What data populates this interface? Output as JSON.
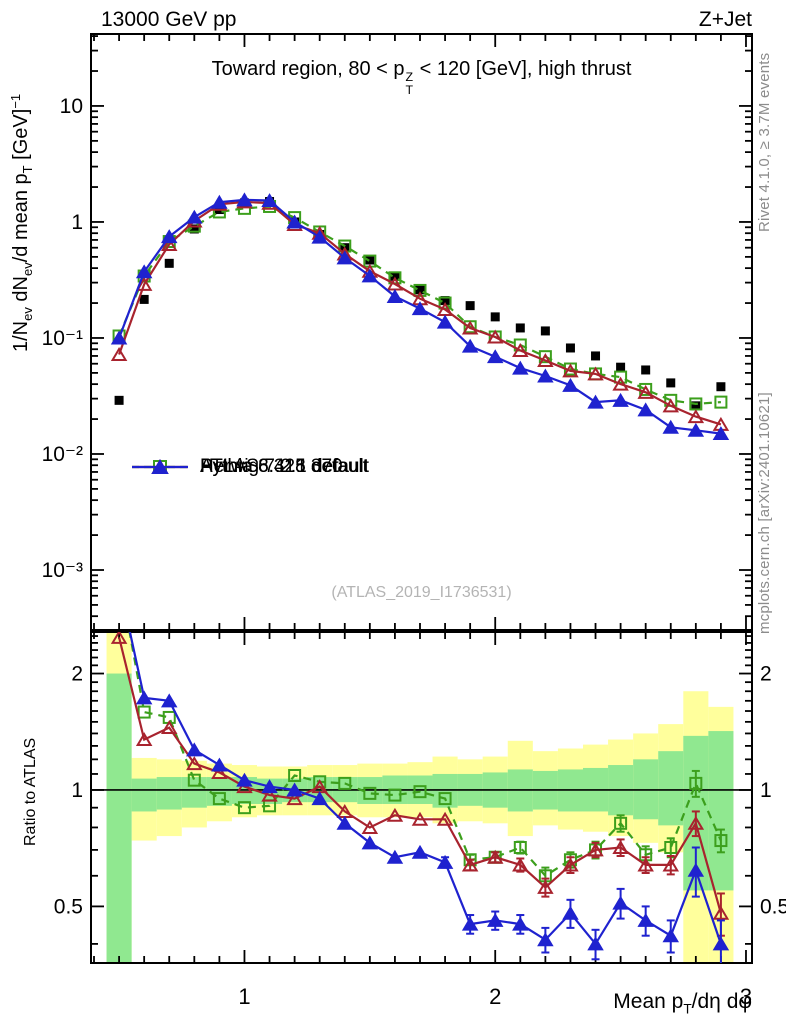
{
  "header": {
    "left": "13000 GeV pp",
    "right": "Z+Jet"
  },
  "panel_title": {
    "pre": "Toward region, 80 < p",
    "sup": "Z",
    "sub": "T",
    "post": " < 120 [GeV], high thrust"
  },
  "watermark": "(ATLAS_2019_I1736531)",
  "side_captions": {
    "top_right": "Rivet 4.1.0, ≥ 3.7M events",
    "bottom_right": "mcplots.cern.ch [arXiv:2401.10621]"
  },
  "axes": {
    "x": {
      "scale": "linear",
      "min": 0.388,
      "max": 3.024,
      "major_ticks": [
        1,
        2,
        3
      ],
      "major_labels": [
        "1",
        "2",
        "3"
      ],
      "minor_start": 0.4,
      "minor_step": 0.1,
      "title": {
        "pre": "Mean p",
        "sub": "T",
        "post": "/dη dφ"
      }
    },
    "y_main": {
      "scale": "log",
      "min": 0.000304,
      "max": 41.7,
      "ticks": [
        {
          "v": 10,
          "label": "10"
        },
        {
          "v": 1,
          "label": "1"
        },
        {
          "v": 0.1,
          "label": "10⁻¹"
        },
        {
          "v": 0.01,
          "label": "10⁻²"
        },
        {
          "v": 0.001,
          "label": "10⁻³"
        }
      ],
      "title_segments": [
        {
          "t": "1/N"
        },
        {
          "t": "ev",
          "sub": true
        },
        {
          "t": " dN"
        },
        {
          "t": "ev",
          "sub": true
        },
        {
          "t": "/d mean p"
        },
        {
          "t": "T",
          "sub": true
        },
        {
          "t": " [GeV]"
        },
        {
          "t": "−1",
          "sup": true
        }
      ]
    },
    "y_ratio": {
      "scale": "log",
      "min": 0.357,
      "max": 2.561,
      "label": "Ratio to ATLAS",
      "ticks": [
        {
          "v": 2,
          "label": "2"
        },
        {
          "v": 1,
          "label": "1"
        },
        {
          "v": 0.5,
          "label": "0.5"
        }
      ]
    }
  },
  "chart_data": {
    "type": "line",
    "title": "Toward region, 80 < pT(Z) < 120 [GeV], high thrust",
    "xlabel": "Mean pT/deta dphi",
    "ylabel": "1/N_ev dN_ev/d mean pT [GeV]^-1",
    "ratio_ylabel": "Ratio to ATLAS",
    "x": [
      0.5,
      0.6,
      0.7,
      0.8,
      0.9,
      1.0,
      1.1,
      1.2,
      1.3,
      1.4,
      1.5,
      1.6,
      1.7,
      1.8,
      1.9,
      2.0,
      2.1,
      2.2,
      2.3,
      2.4,
      2.5,
      2.6,
      2.7,
      2.8,
      2.9
    ],
    "series": [
      {
        "name": "atlas",
        "legend": "ATLAS",
        "color": "#000000",
        "marker": "square-filled",
        "line": "none",
        "values": [
          0.029,
          0.215,
          0.44,
          0.87,
          1.28,
          1.46,
          1.5,
          1.0,
          0.78,
          0.6,
          0.47,
          0.34,
          0.26,
          0.21,
          0.19,
          0.152,
          0.122,
          0.115,
          0.082,
          0.07,
          0.056,
          0.053,
          0.041,
          0.026,
          0.038
        ],
        "ratio": null
      },
      {
        "name": "herwig",
        "legend": "Herwig 7.2.1 default",
        "color": "#3c9f1c",
        "marker": "square-open",
        "line": "dashed",
        "values": [
          0.104,
          0.342,
          0.678,
          0.92,
          1.22,
          1.31,
          1.36,
          1.09,
          0.82,
          0.62,
          0.46,
          0.33,
          0.257,
          0.2,
          0.125,
          0.102,
          0.087,
          0.069,
          0.054,
          0.049,
          0.046,
          0.036,
          0.029,
          0.027,
          0.028
        ],
        "ratio": [
          3.6,
          1.59,
          1.54,
          1.06,
          0.95,
          0.9,
          0.91,
          1.09,
          1.05,
          1.04,
          0.98,
          0.97,
          0.99,
          0.95,
          0.66,
          0.67,
          0.71,
          0.6,
          0.66,
          0.7,
          0.82,
          0.68,
          0.71,
          1.04,
          0.74
        ],
        "ratio_err": [
          0,
          0,
          0,
          0,
          0,
          0,
          0,
          0,
          0,
          0,
          0,
          0,
          0,
          0,
          0.02,
          0.02,
          0.025,
          0.03,
          0.03,
          0.035,
          0.04,
          0.035,
          0.04,
          0.08,
          0.05
        ]
      },
      {
        "name": "pythia6",
        "legend": "Pythia 6.428 370",
        "color": "#a8232e",
        "marker": "triangle-open",
        "line": "solid",
        "values": [
          0.072,
          0.29,
          0.64,
          1.02,
          1.42,
          1.49,
          1.45,
          0.95,
          0.8,
          0.53,
          0.376,
          0.292,
          0.218,
          0.176,
          0.122,
          0.102,
          0.078,
          0.064,
          0.052,
          0.049,
          0.04,
          0.034,
          0.026,
          0.021,
          0.018
        ],
        "ratio": [
          2.48,
          1.35,
          1.45,
          1.17,
          1.11,
          1.02,
          0.97,
          0.95,
          1.02,
          0.88,
          0.8,
          0.86,
          0.84,
          0.84,
          0.64,
          0.67,
          0.64,
          0.56,
          0.64,
          0.7,
          0.71,
          0.64,
          0.64,
          0.82,
          0.48
        ],
        "ratio_err": [
          0,
          0,
          0,
          0,
          0,
          0,
          0,
          0,
          0,
          0,
          0,
          0,
          0,
          0,
          0.02,
          0.02,
          0.025,
          0.03,
          0.03,
          0.03,
          0.035,
          0.03,
          0.035,
          0.06,
          0.06
        ]
      },
      {
        "name": "pythia8",
        "legend": "Pythia 8.315 default",
        "color": "#1f22cf",
        "marker": "triangle-filled",
        "line": "solid",
        "values": [
          0.1,
          0.372,
          0.748,
          1.1,
          1.48,
          1.55,
          1.53,
          1.0,
          0.74,
          0.49,
          0.343,
          0.228,
          0.179,
          0.137,
          0.085,
          0.069,
          0.055,
          0.047,
          0.039,
          0.028,
          0.029,
          0.024,
          0.017,
          0.016,
          0.015
        ],
        "ratio": [
          3.45,
          1.73,
          1.7,
          1.27,
          1.16,
          1.06,
          1.02,
          1.0,
          0.95,
          0.82,
          0.73,
          0.67,
          0.69,
          0.65,
          0.45,
          0.46,
          0.45,
          0.41,
          0.48,
          0.4,
          0.51,
          0.46,
          0.42,
          0.62,
          0.4
        ],
        "ratio_err": [
          0,
          0,
          0,
          0,
          0,
          0,
          0,
          0,
          0,
          0,
          0,
          0,
          0,
          0.02,
          0.025,
          0.025,
          0.025,
          0.03,
          0.04,
          0.035,
          0.045,
          0.04,
          0.04,
          0.09,
          0.06
        ]
      }
    ],
    "ratio_reference": 1,
    "bands": {
      "outer_color": "#ffff9c",
      "inner_color": "#90e890",
      "bin_halfwidth": 0.05,
      "bins": [
        {
          "x": 0.5,
          "outer": [
            0.35,
            2.56
          ],
          "inner": [
            0.35,
            2.0
          ]
        },
        {
          "x": 0.6,
          "outer": [
            0.74,
            1.21
          ],
          "inner": [
            0.88,
            1.07
          ]
        },
        {
          "x": 0.7,
          "outer": [
            0.76,
            1.2
          ],
          "inner": [
            0.89,
            1.08
          ]
        },
        {
          "x": 0.8,
          "outer": [
            0.8,
            1.19
          ],
          "inner": [
            0.9,
            1.08
          ]
        },
        {
          "x": 0.9,
          "outer": [
            0.83,
            1.17
          ],
          "inner": [
            0.91,
            1.08
          ]
        },
        {
          "x": 1.0,
          "outer": [
            0.85,
            1.16
          ],
          "inner": [
            0.92,
            1.08
          ]
        },
        {
          "x": 1.1,
          "outer": [
            0.86,
            1.15
          ],
          "inner": [
            0.92,
            1.07
          ]
        },
        {
          "x": 1.2,
          "outer": [
            0.86,
            1.15
          ],
          "inner": [
            0.93,
            1.07
          ]
        },
        {
          "x": 1.3,
          "outer": [
            0.86,
            1.16
          ],
          "inner": [
            0.93,
            1.08
          ]
        },
        {
          "x": 1.4,
          "outer": [
            0.86,
            1.16
          ],
          "inner": [
            0.93,
            1.08
          ]
        },
        {
          "x": 1.5,
          "outer": [
            0.85,
            1.17
          ],
          "inner": [
            0.92,
            1.08
          ]
        },
        {
          "x": 1.6,
          "outer": [
            0.85,
            1.17
          ],
          "inner": [
            0.92,
            1.09
          ]
        },
        {
          "x": 1.7,
          "outer": [
            0.85,
            1.18
          ],
          "inner": [
            0.92,
            1.09
          ]
        },
        {
          "x": 1.8,
          "outer": [
            0.82,
            1.22
          ],
          "inner": [
            0.9,
            1.1
          ]
        },
        {
          "x": 1.9,
          "outer": [
            0.83,
            1.2
          ],
          "inner": [
            0.91,
            1.1
          ]
        },
        {
          "x": 2.0,
          "outer": [
            0.82,
            1.22
          ],
          "inner": [
            0.9,
            1.11
          ]
        },
        {
          "x": 2.1,
          "outer": [
            0.76,
            1.34
          ],
          "inner": [
            0.88,
            1.13
          ]
        },
        {
          "x": 2.2,
          "outer": [
            0.81,
            1.26
          ],
          "inner": [
            0.89,
            1.12
          ]
        },
        {
          "x": 2.3,
          "outer": [
            0.79,
            1.28
          ],
          "inner": [
            0.88,
            1.13
          ]
        },
        {
          "x": 2.4,
          "outer": [
            0.78,
            1.31
          ],
          "inner": [
            0.88,
            1.14
          ]
        },
        {
          "x": 2.5,
          "outer": [
            0.76,
            1.35
          ],
          "inner": [
            0.86,
            1.16
          ]
        },
        {
          "x": 2.6,
          "outer": [
            0.73,
            1.4
          ],
          "inner": [
            0.84,
            1.2
          ]
        },
        {
          "x": 2.7,
          "outer": [
            0.69,
            1.48
          ],
          "inner": [
            0.81,
            1.26
          ]
        },
        {
          "x": 2.8,
          "outer": [
            0.35,
            1.8
          ],
          "inner": [
            0.55,
            1.38
          ]
        },
        {
          "x": 2.9,
          "outer": [
            0.35,
            1.64
          ],
          "inner": [
            0.55,
            1.42
          ]
        }
      ]
    }
  }
}
